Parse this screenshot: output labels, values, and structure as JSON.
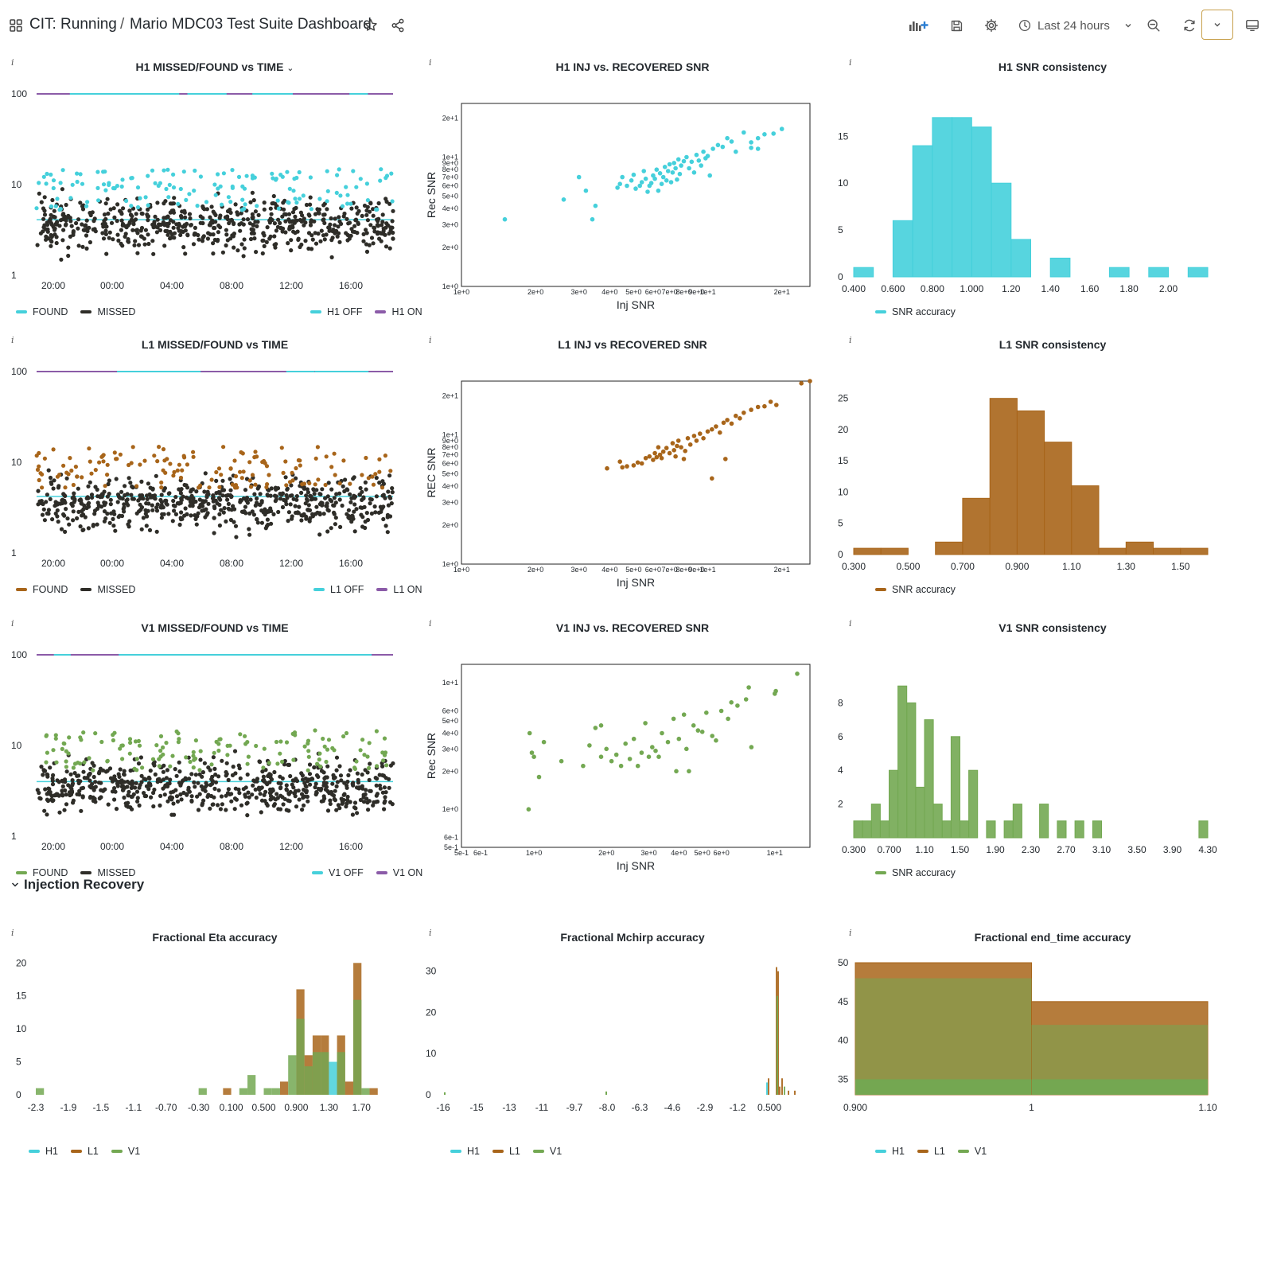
{
  "topbar": {
    "folder": "CIT: Running",
    "separator": "/",
    "dashboard_title": "Mario MDC03 Test Suite Dashboard",
    "time_range": "Last 24 hours"
  },
  "colors": {
    "h1": "#45d0db",
    "l1": "#a8651a",
    "v1": "#73a852",
    "missed": "#2e2d28",
    "on": "#8b5ba8"
  },
  "row_header": "Injection Recovery",
  "panels": {
    "h1_time": {
      "title": "H1 MISSED/FOUND vs TIME",
      "ticks_y": [
        "100",
        "10",
        "1"
      ],
      "ticks_x": [
        "20:00",
        "00:00",
        "04:00",
        "08:00",
        "12:00",
        "16:00"
      ],
      "legend_left": [
        "FOUND",
        "MISSED"
      ],
      "legend_right": [
        "H1 OFF",
        "H1 ON"
      ]
    },
    "l1_time": {
      "title": "L1 MISSED/FOUND vs TIME",
      "ticks_y": [
        "100",
        "10",
        "1"
      ],
      "ticks_x": [
        "20:00",
        "00:00",
        "04:00",
        "08:00",
        "12:00",
        "16:00"
      ],
      "legend_left": [
        "FOUND",
        "MISSED"
      ],
      "legend_right": [
        "L1 OFF",
        "L1 ON"
      ]
    },
    "v1_time": {
      "title": "V1 MISSED/FOUND vs TIME",
      "ticks_y": [
        "100",
        "10",
        "1"
      ],
      "ticks_x": [
        "20:00",
        "00:00",
        "04:00",
        "08:00",
        "12:00",
        "16:00"
      ],
      "legend_left": [
        "FOUND",
        "MISSED"
      ],
      "legend_right": [
        "V1 OFF",
        "V1 ON"
      ]
    },
    "h1_snr": {
      "title": "H1 INJ vs. RECOVERED SNR",
      "xlabel": "Inj SNR",
      "ylabel": "Rec SNR"
    },
    "l1_snr": {
      "title": "L1 INJ vs RECOVERED SNR",
      "xlabel": "Inj SNR",
      "ylabel": "REC SNR"
    },
    "v1_snr": {
      "title": "V1 INJ vs. RECOVERED SNR",
      "xlabel": "Inj SNR",
      "ylabel": "Rec SNR"
    },
    "h1_cons": {
      "title": "H1 SNR consistency",
      "legend": "SNR accuracy"
    },
    "l1_cons": {
      "title": "L1 SNR consistency",
      "legend": "SNR accuracy"
    },
    "v1_cons": {
      "title": "V1 SNR consistency",
      "legend": "SNR accuracy"
    },
    "eta": {
      "title": "Fractional Eta accuracy",
      "legend": [
        "H1",
        "L1",
        "V1"
      ]
    },
    "mchirp": {
      "title": "Fractional Mchirp accuracy",
      "legend": [
        "H1",
        "L1",
        "V1"
      ]
    },
    "endtime": {
      "title": "Fractional end_time accuracy",
      "legend": [
        "H1",
        "L1",
        "V1"
      ]
    }
  },
  "chart_data": [
    {
      "id": "h1_time",
      "type": "scatter",
      "title": "H1 MISSED/FOUND vs TIME",
      "y_scale": "log",
      "ylim": [
        1,
        100
      ],
      "x_ticks": [
        "20:00",
        "00:00",
        "04:00",
        "08:00",
        "12:00",
        "16:00"
      ],
      "series": [
        {
          "name": "FOUND",
          "color": "#45d0db"
        },
        {
          "name": "MISSED",
          "color": "#2e2d28"
        },
        {
          "name": "H1 OFF",
          "color": "#45d0db"
        },
        {
          "name": "H1 ON",
          "color": "#8b5ba8"
        }
      ]
    },
    {
      "id": "l1_time",
      "type": "scatter",
      "title": "L1 MISSED/FOUND vs TIME",
      "y_scale": "log",
      "ylim": [
        1,
        100
      ],
      "x_ticks": [
        "20:00",
        "00:00",
        "04:00",
        "08:00",
        "12:00",
        "16:00"
      ],
      "series": [
        {
          "name": "FOUND",
          "color": "#a8651a"
        },
        {
          "name": "MISSED",
          "color": "#2e2d28"
        },
        {
          "name": "L1 OFF",
          "color": "#45d0db"
        },
        {
          "name": "L1 ON",
          "color": "#8b5ba8"
        }
      ]
    },
    {
      "id": "v1_time",
      "type": "scatter",
      "title": "V1 MISSED/FOUND vs TIME",
      "y_scale": "log",
      "ylim": [
        1,
        100
      ],
      "x_ticks": [
        "20:00",
        "00:00",
        "04:00",
        "08:00",
        "12:00",
        "16:00"
      ],
      "series": [
        {
          "name": "FOUND",
          "color": "#73a852"
        },
        {
          "name": "MISSED",
          "color": "#2e2d28"
        },
        {
          "name": "V1 OFF",
          "color": "#45d0db"
        },
        {
          "name": "V1 ON",
          "color": "#8b5ba8"
        }
      ]
    },
    {
      "id": "h1_snr",
      "type": "scatter",
      "title": "H1 INJ vs. RECOVERED SNR",
      "xlabel": "Inj SNR",
      "ylabel": "Rec SNR",
      "x_scale": "log",
      "y_scale": "log",
      "x_ticks": [
        "1e+0",
        "2e+0",
        "3e+0",
        "4e+0",
        "5e+0",
        "6e+0",
        "7e+0",
        "8e+0",
        "9e+0",
        "1e+1",
        "2e+1"
      ],
      "y_ticks": [
        "1e+0",
        "2e+0",
        "3e+0",
        "4e+0",
        "5e+0",
        "6e+0",
        "7e+0",
        "8e+0",
        "9e+0",
        "1e+1",
        "2e+1"
      ],
      "points": [
        [
          1.5,
          3.3
        ],
        [
          2.6,
          4.7
        ],
        [
          3.0,
          7.0
        ],
        [
          3.2,
          5.5
        ],
        [
          3.5,
          4.2
        ],
        [
          3.4,
          3.3
        ],
        [
          4.3,
          5.8
        ],
        [
          4.4,
          6.2
        ],
        [
          4.5,
          7.0
        ],
        [
          4.7,
          6.0
        ],
        [
          4.9,
          6.6
        ],
        [
          5.0,
          7.3
        ],
        [
          5.1,
          5.7
        ],
        [
          5.3,
          6.0
        ],
        [
          5.4,
          6.4
        ],
        [
          5.5,
          7.8
        ],
        [
          5.6,
          6.8
        ],
        [
          5.7,
          5.4
        ],
        [
          5.8,
          6.0
        ],
        [
          5.9,
          6.3
        ],
        [
          6.0,
          7.2
        ],
        [
          6.1,
          6.8
        ],
        [
          6.2,
          8.0
        ],
        [
          6.3,
          5.5
        ],
        [
          6.4,
          7.5
        ],
        [
          6.5,
          6.2
        ],
        [
          6.6,
          7.0
        ],
        [
          6.7,
          8.4
        ],
        [
          6.8,
          6.6
        ],
        [
          6.9,
          7.8
        ],
        [
          7.0,
          8.8
        ],
        [
          7.1,
          6.4
        ],
        [
          7.2,
          7.6
        ],
        [
          7.3,
          9.0
        ],
        [
          7.4,
          8.2
        ],
        [
          7.5,
          6.7
        ],
        [
          7.6,
          9.6
        ],
        [
          7.7,
          7.4
        ],
        [
          7.8,
          8.6
        ],
        [
          8.0,
          9.3
        ],
        [
          8.2,
          10.0
        ],
        [
          8.4,
          8.2
        ],
        [
          8.6,
          9.2
        ],
        [
          8.8,
          7.6
        ],
        [
          9.0,
          10.4
        ],
        [
          9.2,
          9.4
        ],
        [
          9.4,
          8.6
        ],
        [
          9.6,
          11.0
        ],
        [
          9.8,
          9.8
        ],
        [
          10.0,
          10.2
        ],
        [
          10.2,
          7.2
        ],
        [
          10.5,
          11.6
        ],
        [
          11.0,
          12.4
        ],
        [
          11.5,
          12.0
        ],
        [
          12.0,
          14.0
        ],
        [
          12.5,
          13.2
        ],
        [
          13.0,
          11.0
        ],
        [
          14.0,
          15.5
        ],
        [
          15.0,
          13.0
        ],
        [
          16.0,
          14.0
        ],
        [
          17.0,
          15.0
        ],
        [
          18.5,
          15.2
        ],
        [
          20.0,
          16.5
        ],
        [
          16.0,
          11.6
        ],
        [
          15.0,
          11.8
        ]
      ]
    },
    {
      "id": "l1_snr",
      "type": "scatter",
      "title": "L1 INJ vs RECOVERED SNR",
      "xlabel": "Inj SNR",
      "ylabel": "REC SNR",
      "x_scale": "log",
      "y_scale": "log",
      "x_ticks": [
        "1e+0",
        "2e+0",
        "3e+0",
        "4e+0",
        "5e+0",
        "6e+0",
        "7e+0",
        "8e+0",
        "9e+0",
        "1e+1",
        "2e+1"
      ],
      "y_ticks": [
        "1e+0",
        "2e+0",
        "3e+0",
        "4e+0",
        "5e+0",
        "6e+0",
        "7e+0",
        "8e+0",
        "9e+0",
        "1e+1",
        "2e+1"
      ],
      "points": [
        [
          3.9,
          5.5
        ],
        [
          4.4,
          6.2
        ],
        [
          4.5,
          5.6
        ],
        [
          4.7,
          5.7
        ],
        [
          5.0,
          5.8
        ],
        [
          5.2,
          6.1
        ],
        [
          5.4,
          6.0
        ],
        [
          5.6,
          6.6
        ],
        [
          5.8,
          6.8
        ],
        [
          6.0,
          6.4
        ],
        [
          6.1,
          7.2
        ],
        [
          6.2,
          6.7
        ],
        [
          6.3,
          8.0
        ],
        [
          6.4,
          7.0
        ],
        [
          6.5,
          6.6
        ],
        [
          6.6,
          7.4
        ],
        [
          6.8,
          7.9
        ],
        [
          7.0,
          7.2
        ],
        [
          7.2,
          8.6
        ],
        [
          7.3,
          7.6
        ],
        [
          7.4,
          6.8
        ],
        [
          7.5,
          8.2
        ],
        [
          7.6,
          9.0
        ],
        [
          7.8,
          8.0
        ],
        [
          8.0,
          6.5
        ],
        [
          8.1,
          7.5
        ],
        [
          8.3,
          9.4
        ],
        [
          8.5,
          8.4
        ],
        [
          8.8,
          9.8
        ],
        [
          9.0,
          9.0
        ],
        [
          9.3,
          10.2
        ],
        [
          9.6,
          9.4
        ],
        [
          10.0,
          10.6
        ],
        [
          10.4,
          11.0
        ],
        [
          10.8,
          11.6
        ],
        [
          11.2,
          10.4
        ],
        [
          11.6,
          12.4
        ],
        [
          12.0,
          13.0
        ],
        [
          12.5,
          12.2
        ],
        [
          13.0,
          14.0
        ],
        [
          13.5,
          13.4
        ],
        [
          14.0,
          14.8
        ],
        [
          15.0,
          15.6
        ],
        [
          16.0,
          16.4
        ],
        [
          17.0,
          16.6
        ],
        [
          18.0,
          18.0
        ],
        [
          19.0,
          17.0
        ],
        [
          11.8,
          6.5
        ],
        [
          10.4,
          4.6
        ],
        [
          24.0,
          25.0
        ],
        [
          26.0,
          26.0
        ]
      ]
    },
    {
      "id": "v1_snr",
      "type": "scatter",
      "title": "V1 INJ vs. RECOVERED SNR",
      "xlabel": "Inj SNR",
      "ylabel": "Rec SNR",
      "x_scale": "log",
      "y_scale": "log",
      "x_ticks": [
        "5e-1",
        "6e-1",
        "1e+0",
        "2e+0",
        "3e+0",
        "4e+0",
        "5e+0",
        "6e+0",
        "1e+1"
      ],
      "y_ticks": [
        "5e-1",
        "6e-1",
        "1e+0",
        "2e+0",
        "3e+0",
        "4e+0",
        "5e+0",
        "6e+0",
        "1e+1"
      ],
      "points": [
        [
          0.95,
          1.0
        ],
        [
          0.96,
          4.0
        ],
        [
          0.98,
          2.8
        ],
        [
          1.0,
          2.6
        ],
        [
          1.05,
          1.8
        ],
        [
          1.1,
          3.4
        ],
        [
          1.3,
          2.4
        ],
        [
          1.6,
          2.2
        ],
        [
          1.7,
          3.2
        ],
        [
          1.8,
          4.4
        ],
        [
          1.9,
          4.6
        ],
        [
          1.9,
          2.6
        ],
        [
          2.0,
          3.0
        ],
        [
          2.1,
          2.4
        ],
        [
          2.2,
          2.7
        ],
        [
          2.3,
          2.2
        ],
        [
          2.4,
          3.3
        ],
        [
          2.5,
          2.5
        ],
        [
          2.6,
          3.6
        ],
        [
          2.7,
          2.2
        ],
        [
          2.8,
          2.8
        ],
        [
          2.9,
          4.8
        ],
        [
          3.0,
          2.6
        ],
        [
          3.1,
          3.1
        ],
        [
          3.2,
          2.9
        ],
        [
          3.3,
          2.6
        ],
        [
          3.4,
          4.0
        ],
        [
          3.6,
          3.4
        ],
        [
          3.8,
          5.2
        ],
        [
          3.9,
          2.0
        ],
        [
          4.0,
          3.6
        ],
        [
          4.2,
          5.6
        ],
        [
          4.3,
          3.0
        ],
        [
          4.4,
          2.0
        ],
        [
          4.6,
          4.6
        ],
        [
          4.8,
          4.2
        ],
        [
          5.0,
          4.1
        ],
        [
          5.2,
          5.8
        ],
        [
          5.5,
          3.8
        ],
        [
          5.7,
          3.5
        ],
        [
          6.0,
          6.0
        ],
        [
          6.4,
          5.2
        ],
        [
          6.6,
          7.0
        ],
        [
          7.0,
          6.6
        ],
        [
          7.6,
          7.4
        ],
        [
          8.0,
          3.1
        ],
        [
          7.8,
          9.2
        ],
        [
          10.0,
          8.2
        ],
        [
          10.1,
          8.6
        ],
        [
          12.4,
          11.8
        ]
      ]
    },
    {
      "id": "h1_cons",
      "type": "bar",
      "title": "H1 SNR consistency",
      "x_ticks": [
        "0.400",
        "0.600",
        "0.800",
        "1.000",
        "1.20",
        "1.40",
        "1.60",
        "1.80",
        "2.00"
      ],
      "y_ticks": [
        "0",
        "5",
        "10",
        "15"
      ],
      "bin_start": 0.4,
      "bin_width": 0.1,
      "values": [
        1,
        0,
        6,
        14,
        17,
        17,
        16,
        10,
        4,
        0,
        2,
        0,
        0,
        1,
        0,
        1,
        0,
        1
      ]
    },
    {
      "id": "l1_cons",
      "type": "bar",
      "title": "L1 SNR consistency",
      "x_ticks": [
        "0.300",
        "0.500",
        "0.700",
        "0.900",
        "1.10",
        "1.30",
        "1.50"
      ],
      "y_ticks": [
        "0",
        "5",
        "10",
        "15",
        "20",
        "25"
      ],
      "bin_start": 0.3,
      "bin_width": 0.1,
      "values": [
        1,
        1,
        0,
        2,
        9,
        25,
        23,
        18,
        11,
        1,
        2,
        1,
        1
      ]
    },
    {
      "id": "v1_cons",
      "type": "bar",
      "title": "V1 SNR consistency",
      "x_ticks": [
        "0.300",
        "0.700",
        "1.10",
        "1.50",
        "1.90",
        "2.30",
        "2.70",
        "3.10",
        "3.50",
        "3.90",
        "4.30"
      ],
      "y_ticks": [
        "2",
        "4",
        "6",
        "8"
      ],
      "bin_start": 0.3,
      "bin_width": 0.1,
      "values": [
        1,
        1,
        2,
        1,
        4,
        9,
        8,
        3,
        7,
        2,
        1,
        6,
        1,
        4,
        0,
        1,
        0,
        1,
        2,
        0,
        0,
        2,
        0,
        1,
        0,
        1,
        0,
        1,
        0,
        0,
        0,
        0,
        0,
        0,
        0,
        0,
        0,
        0,
        0,
        1
      ]
    },
    {
      "id": "eta",
      "type": "bar",
      "title": "Fractional Eta accuracy",
      "x_ticks": [
        "-2.3",
        "-1.9",
        "-1.5",
        "-1.1",
        "-0.70",
        "-0.30",
        "0.100",
        "0.500",
        "0.900",
        "1.30",
        "1.70"
      ],
      "y_ticks": [
        "0",
        "5",
        "10",
        "15",
        "20"
      ],
      "bin_start": -2.3,
      "bin_width": 0.1,
      "series": [
        {
          "name": "H1",
          "color": "#45d0db"
        },
        {
          "name": "L1",
          "color": "#a8651a"
        },
        {
          "name": "V1",
          "color": "#73a852"
        }
      ]
    },
    {
      "id": "mchirp",
      "type": "bar",
      "title": "Fractional Mchirp accuracy",
      "x_ticks": [
        "-16",
        "-15",
        "-13",
        "-11",
        "-9.7",
        "-8.0",
        "-6.3",
        "-4.6",
        "-2.9",
        "-1.2",
        "0.500"
      ],
      "y_ticks": [
        "0",
        "10",
        "20",
        "30"
      ],
      "series": [
        {
          "name": "H1",
          "color": "#45d0db"
        },
        {
          "name": "L1",
          "color": "#a8651a"
        },
        {
          "name": "V1",
          "color": "#73a852"
        }
      ]
    },
    {
      "id": "endtime",
      "type": "bar",
      "title": "Fractional end_time accuracy",
      "x_ticks": [
        "0.900",
        "1",
        "1.10"
      ],
      "y_ticks": [
        "35",
        "40",
        "45",
        "50"
      ],
      "ylim": [
        33,
        50
      ],
      "categories": [
        "0.9-1",
        "1-1.1"
      ],
      "series": [
        {
          "name": "H1",
          "color": "#45d0db",
          "values": [
            48,
            42
          ]
        },
        {
          "name": "L1",
          "color": "#a8651a",
          "values": [
            50,
            45
          ]
        },
        {
          "name": "V1",
          "color": "#73a852",
          "values": [
            48,
            42
          ]
        }
      ]
    }
  ]
}
